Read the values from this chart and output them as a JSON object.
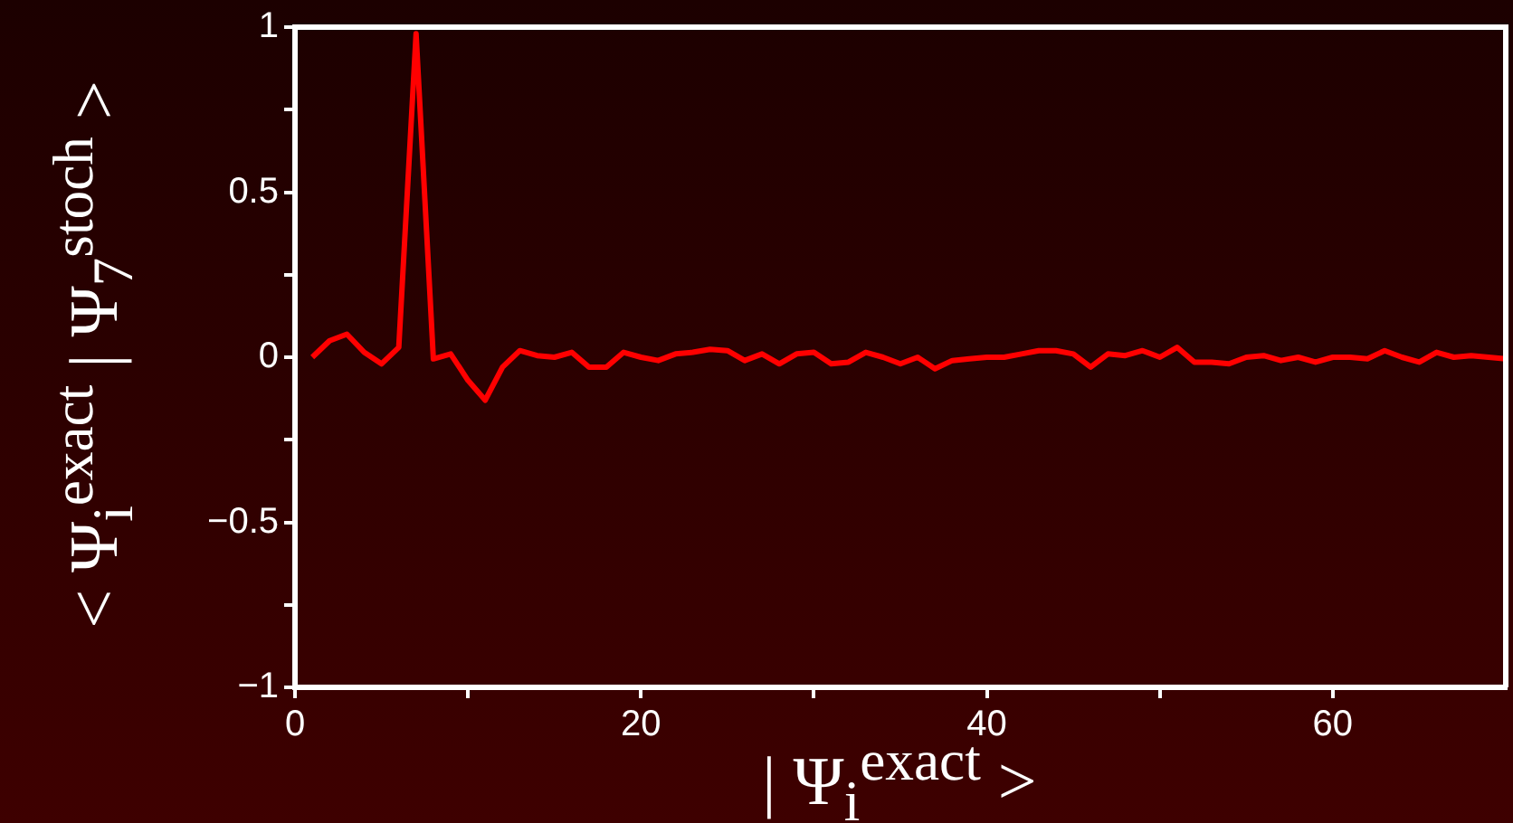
{
  "chart_data": {
    "type": "line",
    "xlabel": "| Ψ$_{i}$$^{exact}$ >",
    "ylabel": "< Ψ$_{i}$$^{exact}$ | Ψ$_{7}$$^{stoch}$ >",
    "x": [
      1,
      2,
      3,
      4,
      5,
      6,
      7,
      8,
      9,
      10,
      11,
      12,
      13,
      14,
      15,
      16,
      17,
      18,
      19,
      20,
      21,
      22,
      23,
      24,
      25,
      26,
      27,
      28,
      29,
      30,
      31,
      32,
      33,
      34,
      35,
      36,
      37,
      38,
      39,
      40,
      41,
      42,
      43,
      44,
      45,
      46,
      47,
      48,
      49,
      50,
      51,
      52,
      53,
      54,
      55,
      56,
      57,
      58,
      59,
      60,
      61,
      62,
      63,
      64,
      65,
      66,
      67,
      68,
      69,
      70
    ],
    "series": [
      {
        "color": "#ff0000",
        "values": [
          0,
          0.05,
          0.07,
          0.015,
          -0.02,
          0.03,
          0.98,
          -0.005,
          0.01,
          -0.07,
          -0.13,
          -0.03,
          0.02,
          0.005,
          0,
          0.015,
          -0.03,
          -0.03,
          0.015,
          0,
          -0.01,
          0.01,
          0.015,
          0.024,
          0.02,
          -0.01,
          0.01,
          -0.02,
          0.01,
          0.015,
          -0.02,
          -0.015,
          0.015,
          0,
          -0.02,
          0,
          -0.035,
          -0.01,
          -0.005,
          0,
          0,
          0.01,
          0.02,
          0.02,
          0.01,
          -0.03,
          0.01,
          0.005,
          0.02,
          0,
          0.03,
          -0.015,
          -0.015,
          -0.02,
          0,
          0.005,
          -0.01,
          0,
          -0.015,
          0,
          0,
          -0.005,
          0.02,
          0,
          -0.015,
          0.015,
          0,
          0.005,
          0,
          -0.005
        ]
      }
    ],
    "xlim": [
      0,
      70
    ],
    "xticks": [
      0,
      {
        "value": 10,
        "label": null
      },
      20,
      {
        "value": 30,
        "label": null
      },
      40,
      {
        "value": 50,
        "label": null
      },
      60
    ],
    "ylim": [
      -1,
      1
    ],
    "yticks": [
      -1,
      {
        "value": -0.75,
        "label": null
      },
      -0.5,
      {
        "value": -0.25,
        "label": null
      },
      0,
      {
        "value": 0.25,
        "label": null
      },
      0.5,
      {
        "value": 0.75,
        "label": null
      },
      1
    ],
    "grid": false,
    "legend": false,
    "marker": "none",
    "line_style": "solid"
  }
}
